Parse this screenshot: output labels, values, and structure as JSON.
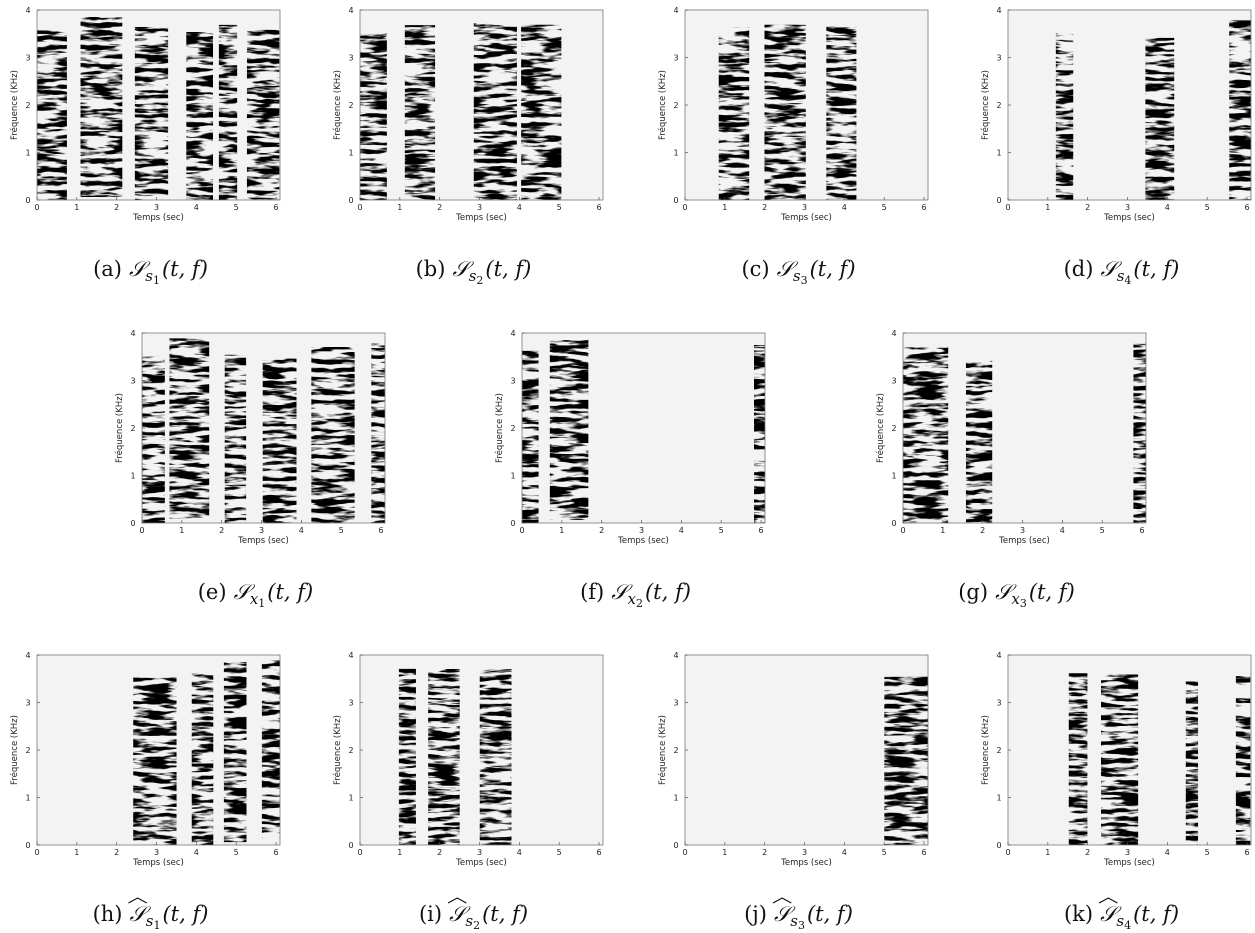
{
  "axes": {
    "xlabel": "Temps (sec)",
    "ylabel": "Fréquence (KHz)",
    "xlim": [
      0,
      6.1
    ],
    "ylim": [
      0,
      4
    ],
    "xticks": [
      0,
      1,
      2,
      3,
      4,
      5,
      6
    ],
    "yticks": [
      0,
      1,
      2,
      3,
      4
    ]
  },
  "panels": [
    {
      "label": "(a)",
      "symbol": "𝒮",
      "sub": "s",
      "index": "1",
      "args": "(t, f)",
      "hat": false
    },
    {
      "label": "(b)",
      "symbol": "𝒮",
      "sub": "s",
      "index": "2",
      "args": "(t, f)",
      "hat": false
    },
    {
      "label": "(c)",
      "symbol": "𝒮",
      "sub": "s",
      "index": "3",
      "args": "(t, f)",
      "hat": false
    },
    {
      "label": "(d)",
      "symbol": "𝒮",
      "sub": "s",
      "index": "4",
      "args": "(t, f)",
      "hat": false
    },
    {
      "label": "(e)",
      "symbol": "𝒮",
      "sub": "x",
      "index": "1",
      "args": "(t, f)",
      "hat": false
    },
    {
      "label": "(f)",
      "symbol": "𝒮",
      "sub": "x",
      "index": "2",
      "args": "(t, f)",
      "hat": false
    },
    {
      "label": "(g)",
      "symbol": "𝒮",
      "sub": "x",
      "index": "3",
      "args": "(t, f)",
      "hat": false
    },
    {
      "label": "(h)",
      "symbol": "𝒮",
      "sub": "s",
      "index": "1",
      "args": "(t, f)",
      "hat": true
    },
    {
      "label": "(i)",
      "symbol": "𝒮",
      "sub": "s",
      "index": "2",
      "args": "(t, f)",
      "hat": true
    },
    {
      "label": "(j)",
      "symbol": "𝒮",
      "sub": "s",
      "index": "3",
      "args": "(t, f)",
      "hat": true
    },
    {
      "label": "(k)",
      "symbol": "𝒮",
      "sub": "s",
      "index": "4",
      "args": "(t, f)",
      "hat": true
    }
  ]
}
